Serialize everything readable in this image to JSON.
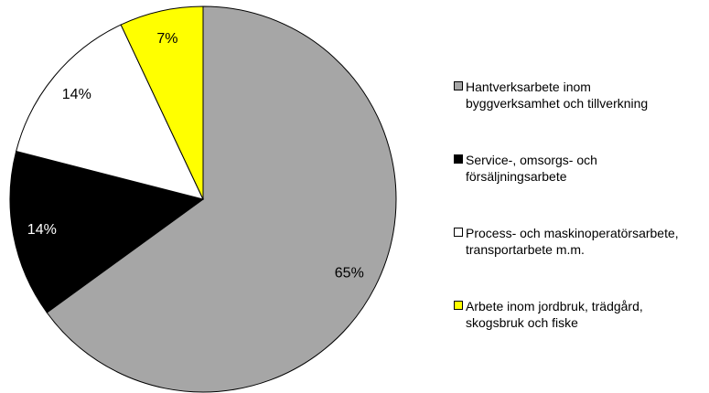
{
  "chart_data": {
    "type": "pie",
    "series": [
      {
        "name": "Hantverksarbete inom\nbyggverksamhet och tillverkning",
        "color": "#a6a6a6",
        "values": [
          65
        ],
        "value_labels": [
          "65%"
        ]
      },
      {
        "name": "Service-, omsorgs- och\nförsäljningsarbete",
        "color": "#000000",
        "values": [
          14
        ],
        "value_labels": [
          "14%"
        ]
      },
      {
        "name": "Process- och maskinoperatörsarbete,\ntransportarbete m.m.",
        "color": "#ffffff",
        "values": [
          14
        ],
        "value_labels": [
          "14%"
        ]
      },
      {
        "name": "Arbete inom jordbruk, trädgård,\nskogsbruk och fiske",
        "color": "#ffff00",
        "values": [
          7
        ],
        "value_labels": [
          "7%"
        ]
      }
    ]
  }
}
